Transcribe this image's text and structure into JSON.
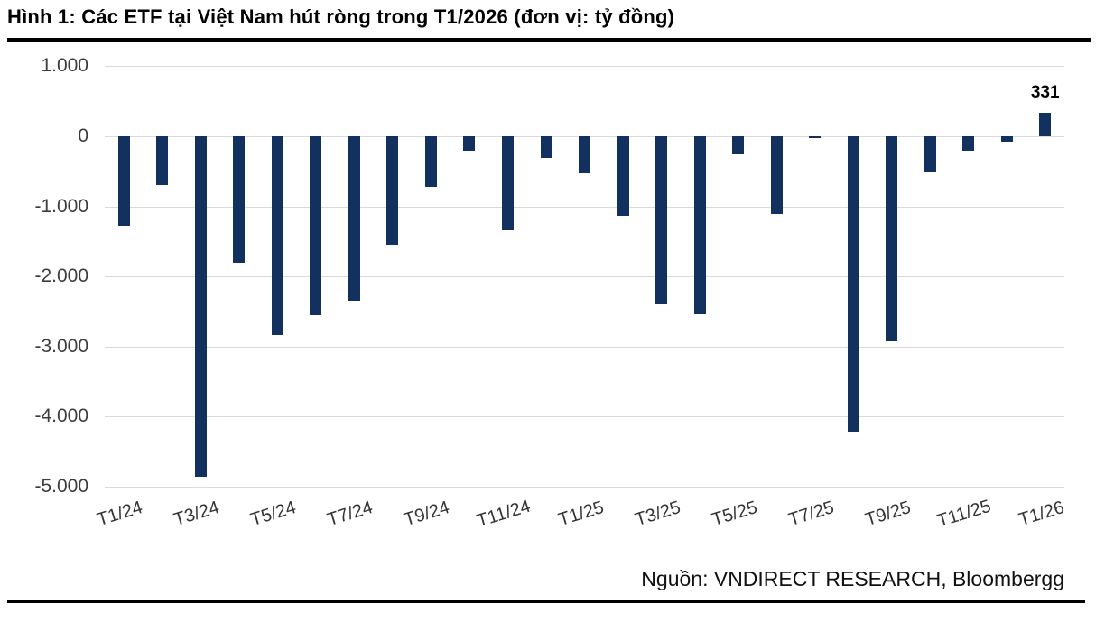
{
  "figure": {
    "title": "Hình 1: Các ETF tại Việt Nam hút ròng trong T1/2026 (đơn vị: tỷ đồng)",
    "source": "Nguồn: VNDIRECT RESEARCH, Bloombergg"
  },
  "colors": {
    "bar": "#12315f",
    "grid": "#d9d9d9",
    "axis_text": "#3d3d3d",
    "divider": "#000000"
  },
  "chart_data": {
    "type": "bar",
    "title": "Các ETF tại Việt Nam hút ròng trong T1/2026",
    "unit": "tỷ đồng",
    "categories": [
      "T1/24",
      "T2/24",
      "T3/24",
      "T4/24",
      "T5/24",
      "T6/24",
      "T7/24",
      "T8/24",
      "T9/24",
      "T10/24",
      "T11/24",
      "T12/24",
      "T1/25",
      "T2/25",
      "T3/25",
      "T4/25",
      "T5/25",
      "T6/25",
      "T7/25",
      "T8/25",
      "T9/25",
      "T10/25",
      "T11/25",
      "T12/25",
      "T1/26"
    ],
    "values": [
      -1270,
      -700,
      -4860,
      -1800,
      -2830,
      -2550,
      -2340,
      -1540,
      -720,
      -200,
      -1340,
      -310,
      -530,
      -1130,
      -2400,
      -2540,
      -260,
      -1110,
      -30,
      -4220,
      -2930,
      -510,
      -210,
      -80,
      331
    ],
    "x_tick_labels": [
      "T1/24",
      "T3/24",
      "T5/24",
      "T7/24",
      "T9/24",
      "T11/24",
      "T1/25",
      "T3/25",
      "T5/25",
      "T7/25",
      "T9/25",
      "T11/25",
      "T1/26"
    ],
    "y_ticks": [
      1000,
      0,
      -1000,
      -2000,
      -3000,
      -4000,
      -5000
    ],
    "y_tick_labels": [
      "1.000",
      "0",
      "-1.000",
      "-2.000",
      "-3.000",
      "-4.000",
      "-5.000"
    ],
    "ylim": [
      -5000,
      1000
    ],
    "grid": true,
    "legend": false,
    "data_labels": [
      {
        "category": "T1/26",
        "label": "331"
      }
    ]
  }
}
